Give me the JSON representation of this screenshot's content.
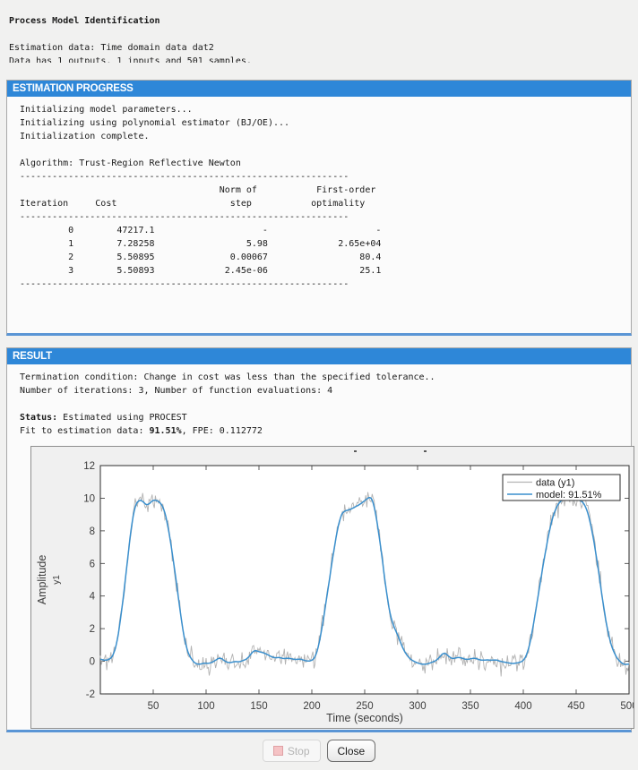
{
  "report": {
    "title": "Process Model Identification",
    "estimation_data_line": "Estimation data: Time domain data dat2",
    "data_summary_line_clipped": "Data has 1 outputs, 1 inputs and 501 samples."
  },
  "progress": {
    "header": "ESTIMATION PROGRESS",
    "init_lines": [
      "Initializing model parameters...",
      "Initializing using polynomial estimator (BJ/OE)...",
      "Initialization complete."
    ],
    "algorithm_line": "Algorithm: Trust-Region Reflective Newton",
    "table": {
      "col_headers_line1": [
        "Norm of",
        "First-order"
      ],
      "col_headers_line2": [
        "Iteration",
        "Cost",
        "step",
        "optimality"
      ],
      "rows": [
        [
          "0",
          "47217.1",
          "-",
          "-"
        ],
        [
          "1",
          "7.28258",
          "5.98",
          "2.65e+04"
        ],
        [
          "2",
          "5.50895",
          "0.00067",
          "80.4"
        ],
        [
          "3",
          "5.50893",
          "2.45e-06",
          "25.1"
        ]
      ]
    }
  },
  "result": {
    "header": "RESULT",
    "termination_line": "Termination condition: Change in cost was less than the specified tolerance..",
    "iterations_line": "Number of iterations: 3, Number of function evaluations: 4",
    "status_label": "Status:",
    "status_text": " Estimated using PROCEST",
    "fit_prefix": "Fit to estimation data: ",
    "fit_value": "91.51%",
    "fit_suffix": ", FPE: 0.112772"
  },
  "buttons": {
    "stop": "Stop",
    "close": "Close"
  },
  "colors": {
    "header_blue": "#2e87d8",
    "panel_bottom_blue": "#5a95d5",
    "model_blue": "#3a8fcd",
    "data_gray": "#b3b3b3"
  },
  "chart_data": {
    "type": "line",
    "title": "",
    "xlabel": "Time (seconds)",
    "ylabel": "Amplitude",
    "ylabel_sub": "y1",
    "xlim": [
      0,
      500
    ],
    "ylim": [
      -2,
      12
    ],
    "xticks": [
      50,
      100,
      150,
      200,
      250,
      300,
      350,
      400,
      450,
      500
    ],
    "yticks": [
      -2,
      0,
      2,
      4,
      6,
      8,
      10,
      12
    ],
    "grid": false,
    "legend_position": "upper right",
    "legend": [
      {
        "label": "data (y1)",
        "color": "#b3b3b3"
      },
      {
        "label": "model: 91.51%",
        "color": "#3a8fcd"
      }
    ],
    "series": [
      {
        "name": "data (y1)",
        "color": "#b3b3b3",
        "style": "model plus noise",
        "noise_sigma": 0.28,
        "samples": 501
      },
      {
        "name": "model: 91.51%",
        "color": "#3a8fcd",
        "style": "smooth"
      }
    ],
    "model_keypoints": [
      [
        0,
        0.15
      ],
      [
        4,
        0.05
      ],
      [
        8,
        0.1
      ],
      [
        12,
        0.3
      ],
      [
        16,
        1.2
      ],
      [
        20,
        3.0
      ],
      [
        24,
        5.2
      ],
      [
        27,
        7.0
      ],
      [
        30,
        8.6
      ],
      [
        33,
        9.6
      ],
      [
        36,
        9.85
      ],
      [
        39,
        9.9
      ],
      [
        42,
        9.65
      ],
      [
        45,
        9.55
      ],
      [
        48,
        9.8
      ],
      [
        51,
        9.9
      ],
      [
        54,
        9.85
      ],
      [
        57,
        9.7
      ],
      [
        60,
        9.4
      ],
      [
        63,
        8.6
      ],
      [
        66,
        7.5
      ],
      [
        69,
        6.2
      ],
      [
        72,
        4.8
      ],
      [
        75,
        3.3
      ],
      [
        78,
        1.9
      ],
      [
        81,
        0.9
      ],
      [
        84,
        0.35
      ],
      [
        87,
        0.05
      ],
      [
        90,
        -0.15
      ],
      [
        94,
        -0.2
      ],
      [
        98,
        -0.1
      ],
      [
        102,
        -0.15
      ],
      [
        106,
        -0.05
      ],
      [
        110,
        0.1
      ],
      [
        113,
        0.25
      ],
      [
        116,
        0.1
      ],
      [
        119,
        -0.05
      ],
      [
        123,
        -0.1
      ],
      [
        127,
        0.0
      ],
      [
        131,
        -0.05
      ],
      [
        135,
        0.05
      ],
      [
        139,
        0.15
      ],
      [
        143,
        0.5
      ],
      [
        146,
        0.7
      ],
      [
        149,
        0.6
      ],
      [
        153,
        0.55
      ],
      [
        157,
        0.45
      ],
      [
        161,
        0.3
      ],
      [
        165,
        0.2
      ],
      [
        169,
        0.25
      ],
      [
        173,
        0.15
      ],
      [
        177,
        0.2
      ],
      [
        181,
        0.15
      ],
      [
        185,
        0.1
      ],
      [
        189,
        0.15
      ],
      [
        193,
        0.05
      ],
      [
        197,
        0.0
      ],
      [
        200,
        0.05
      ],
      [
        203,
        0.2
      ],
      [
        206,
        0.8
      ],
      [
        209,
        1.8
      ],
      [
        212,
        3.0
      ],
      [
        215,
        4.3
      ],
      [
        218,
        5.6
      ],
      [
        221,
        6.9
      ],
      [
        224,
        8.0
      ],
      [
        227,
        8.9
      ],
      [
        230,
        9.2
      ],
      [
        233,
        9.25
      ],
      [
        236,
        9.3
      ],
      [
        239,
        9.4
      ],
      [
        242,
        9.5
      ],
      [
        245,
        9.6
      ],
      [
        248,
        9.75
      ],
      [
        251,
        9.9
      ],
      [
        254,
        10.05
      ],
      [
        256,
        10.1
      ],
      [
        258,
        9.8
      ],
      [
        260,
        9.2
      ],
      [
        263,
        8.0
      ],
      [
        266,
        6.6
      ],
      [
        269,
        5.0
      ],
      [
        272,
        3.6
      ],
      [
        275,
        2.6
      ],
      [
        277,
        2.2
      ],
      [
        280,
        1.8
      ],
      [
        283,
        1.3
      ],
      [
        286,
        0.8
      ],
      [
        289,
        0.45
      ],
      [
        292,
        0.2
      ],
      [
        295,
        0.05
      ],
      [
        298,
        -0.05
      ],
      [
        302,
        -0.15
      ],
      [
        306,
        -0.2
      ],
      [
        310,
        -0.15
      ],
      [
        314,
        -0.05
      ],
      [
        318,
        0.05
      ],
      [
        322,
        0.35
      ],
      [
        325,
        0.55
      ],
      [
        328,
        0.4
      ],
      [
        331,
        0.2
      ],
      [
        334,
        0.15
      ],
      [
        338,
        0.25
      ],
      [
        342,
        0.2
      ],
      [
        346,
        0.1
      ],
      [
        350,
        0.15
      ],
      [
        354,
        0.2
      ],
      [
        358,
        0.1
      ],
      [
        362,
        0.05
      ],
      [
        366,
        0.1
      ],
      [
        370,
        0.05
      ],
      [
        374,
        0.1
      ],
      [
        378,
        0.0
      ],
      [
        382,
        -0.05
      ],
      [
        386,
        -0.1
      ],
      [
        390,
        -0.15
      ],
      [
        394,
        -0.1
      ],
      [
        398,
        -0.05
      ],
      [
        401,
        0.1
      ],
      [
        404,
        0.5
      ],
      [
        407,
        1.3
      ],
      [
        410,
        2.4
      ],
      [
        413,
        3.6
      ],
      [
        416,
        4.8
      ],
      [
        419,
        6.0
      ],
      [
        422,
        7.1
      ],
      [
        425,
        8.1
      ],
      [
        428,
        8.9
      ],
      [
        431,
        9.4
      ],
      [
        434,
        9.75
      ],
      [
        437,
        9.9
      ],
      [
        440,
        9.95
      ],
      [
        444,
        9.9
      ],
      [
        448,
        9.85
      ],
      [
        452,
        9.9
      ],
      [
        456,
        9.8
      ],
      [
        459,
        9.5
      ],
      [
        462,
        8.9
      ],
      [
        465,
        8.0
      ],
      [
        468,
        6.9
      ],
      [
        471,
        5.6
      ],
      [
        474,
        4.2
      ],
      [
        477,
        2.9
      ],
      [
        480,
        1.8
      ],
      [
        483,
        1.0
      ],
      [
        486,
        0.5
      ],
      [
        489,
        0.15
      ],
      [
        492,
        -0.05
      ],
      [
        495,
        -0.2
      ],
      [
        498,
        -0.2
      ],
      [
        500,
        -0.15
      ]
    ]
  }
}
